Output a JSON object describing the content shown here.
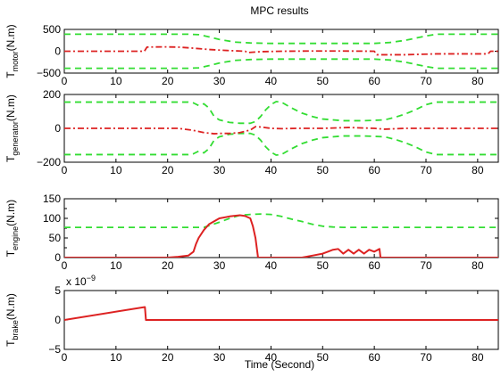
{
  "chart_data": {
    "type": "line",
    "title": "MPC results",
    "xlabel": "Time (Second)",
    "xlim": [
      0,
      84
    ],
    "x_ticks": [
      0,
      10,
      20,
      30,
      40,
      50,
      60,
      70,
      80
    ],
    "panels": [
      {
        "ylabel_main": "T",
        "ylabel_sub": "motor",
        "ylabel_unit": "(N.m)",
        "ylim": [
          -500,
          500
        ],
        "y_ticks": [
          -500,
          0,
          500
        ],
        "series": [
          {
            "color": "#33dd33",
            "style": "dashed",
            "x": [
              0,
              24,
              26,
              28,
              30,
              33,
              36,
              40,
              45,
              50,
              55,
              60,
              63,
              66,
              68,
              70,
              72,
              84
            ],
            "y": [
              390,
              390,
              380,
              330,
              270,
              210,
              190,
              180,
              180,
              180,
              180,
              180,
              200,
              250,
              300,
              350,
              390,
              390
            ]
          },
          {
            "color": "#33dd33",
            "style": "dashed",
            "x": [
              0,
              24,
              26,
              28,
              30,
              33,
              36,
              40,
              45,
              50,
              55,
              60,
              63,
              66,
              68,
              70,
              72,
              84
            ],
            "y": [
              -390,
              -390,
              -380,
              -330,
              -270,
              -210,
              -190,
              -180,
              -180,
              -180,
              -180,
              -180,
              -200,
              -250,
              -300,
              -350,
              -390,
              -390
            ]
          },
          {
            "color": "#dd2222",
            "style": "dashdot",
            "x": [
              0,
              15.5,
              16,
              19,
              22,
              25,
              28,
              31,
              34,
              35,
              35.5,
              38,
              42,
              48,
              54,
              60,
              60.5,
              62,
              66,
              72,
              78,
              82,
              82.5,
              84
            ],
            "y": [
              0,
              0,
              95,
              100,
              95,
              70,
              40,
              20,
              5,
              0,
              -30,
              -10,
              0,
              5,
              5,
              0,
              -80,
              -80,
              -80,
              -60,
              -60,
              -60,
              0,
              0
            ]
          }
        ]
      },
      {
        "ylabel_main": "T",
        "ylabel_sub": "generator",
        "ylabel_unit": "(N.m)",
        "ylim": [
          -200,
          200
        ],
        "y_ticks": [
          -200,
          0,
          200
        ],
        "series": [
          {
            "color": "#33dd33",
            "style": "dashed",
            "x": [
              0,
              24,
              25,
              26,
              27,
              28,
              29,
              30,
              32,
              34,
              36,
              37,
              38,
              39,
              40,
              41,
              42,
              44,
              46,
              48,
              50,
              54,
              58,
              62,
              64,
              66,
              68,
              70,
              72,
              84
            ],
            "y": [
              155,
              155,
              150,
              135,
              145,
              120,
              70,
              50,
              35,
              30,
              30,
              40,
              70,
              110,
              140,
              158,
              155,
              120,
              90,
              70,
              55,
              45,
              45,
              50,
              65,
              85,
              110,
              140,
              155,
              155
            ]
          },
          {
            "color": "#33dd33",
            "style": "dashed",
            "x": [
              0,
              24,
              25,
              26,
              27,
              28,
              29,
              30,
              32,
              34,
              36,
              37,
              38,
              39,
              40,
              41,
              42,
              44,
              46,
              48,
              50,
              54,
              58,
              62,
              64,
              66,
              68,
              70,
              72,
              84
            ],
            "y": [
              -155,
              -155,
              -150,
              -135,
              -145,
              -120,
              -70,
              -50,
              -35,
              -30,
              -30,
              -40,
              -70,
              -110,
              -140,
              -158,
              -155,
              -120,
              -90,
              -70,
              -55,
              -45,
              -45,
              -50,
              -65,
              -85,
              -110,
              -140,
              -155,
              -155
            ]
          },
          {
            "color": "#dd2222",
            "style": "dashdot",
            "x": [
              0,
              22,
              25,
              27,
              29,
              30,
              32,
              34,
              36,
              37,
              38,
              40,
              42,
              45,
              50,
              55,
              60,
              62,
              66,
              72,
              84
            ],
            "y": [
              0,
              0,
              -12,
              -25,
              -32,
              -30,
              -30,
              -25,
              -10,
              10,
              8,
              0,
              -2,
              0,
              0,
              5,
              0,
              -5,
              0,
              0,
              0
            ]
          }
        ]
      },
      {
        "ylabel_main": "T",
        "ylabel_sub": "engine",
        "ylabel_unit": "(N.m)",
        "ylim": [
          0,
          150
        ],
        "y_ticks": [
          0,
          50,
          100,
          150
        ],
        "y_tick_labels": [
          "0",
          "50",
          "100",
          "150"
        ],
        "minor_ticks": [
          25,
          75,
          125
        ],
        "series": [
          {
            "color": "#33dd33",
            "style": "dashed",
            "x": [
              0,
              27,
              30,
              32,
              34,
              36,
              38,
              40,
              42,
              44,
              46,
              48,
              50,
              52,
              54,
              84
            ],
            "y": [
              77,
              77,
              90,
              100,
              108,
              110,
              111,
              110,
              105,
              98,
              92,
              85,
              80,
              78,
              77,
              77
            ]
          },
          {
            "color": "#dd2222",
            "style": "solid",
            "x": [
              0,
              20,
              22,
              24,
              25,
              25.5,
              26,
              27,
              28,
              30,
              32,
              34,
              35,
              36,
              36.5,
              37,
              37.5,
              38,
              46,
              48,
              50,
              51,
              52,
              53,
              54,
              55,
              56,
              57,
              58,
              59,
              60,
              61,
              61.2,
              84
            ],
            "y": [
              0,
              0,
              2,
              5,
              15,
              35,
              50,
              70,
              85,
              100,
              105,
              108,
              106,
              100,
              80,
              50,
              0,
              0,
              0,
              5,
              10,
              15,
              20,
              22,
              10,
              20,
              10,
              20,
              10,
              20,
              15,
              22,
              0,
              0
            ]
          }
        ]
      },
      {
        "ylabel_main": "T",
        "ylabel_sub": "brake",
        "ylabel_unit": "(N.m)",
        "ylim": [
          -5,
          5
        ],
        "y_ticks": [
          -5,
          0,
          5
        ],
        "scale_label": "x 10",
        "scale_exp": "−9",
        "series": [
          {
            "color": "#dd2222",
            "style": "solid",
            "x": [
              0,
              15.6,
              15.8,
              84
            ],
            "y": [
              0,
              2.2,
              0,
              0
            ]
          }
        ]
      }
    ]
  }
}
